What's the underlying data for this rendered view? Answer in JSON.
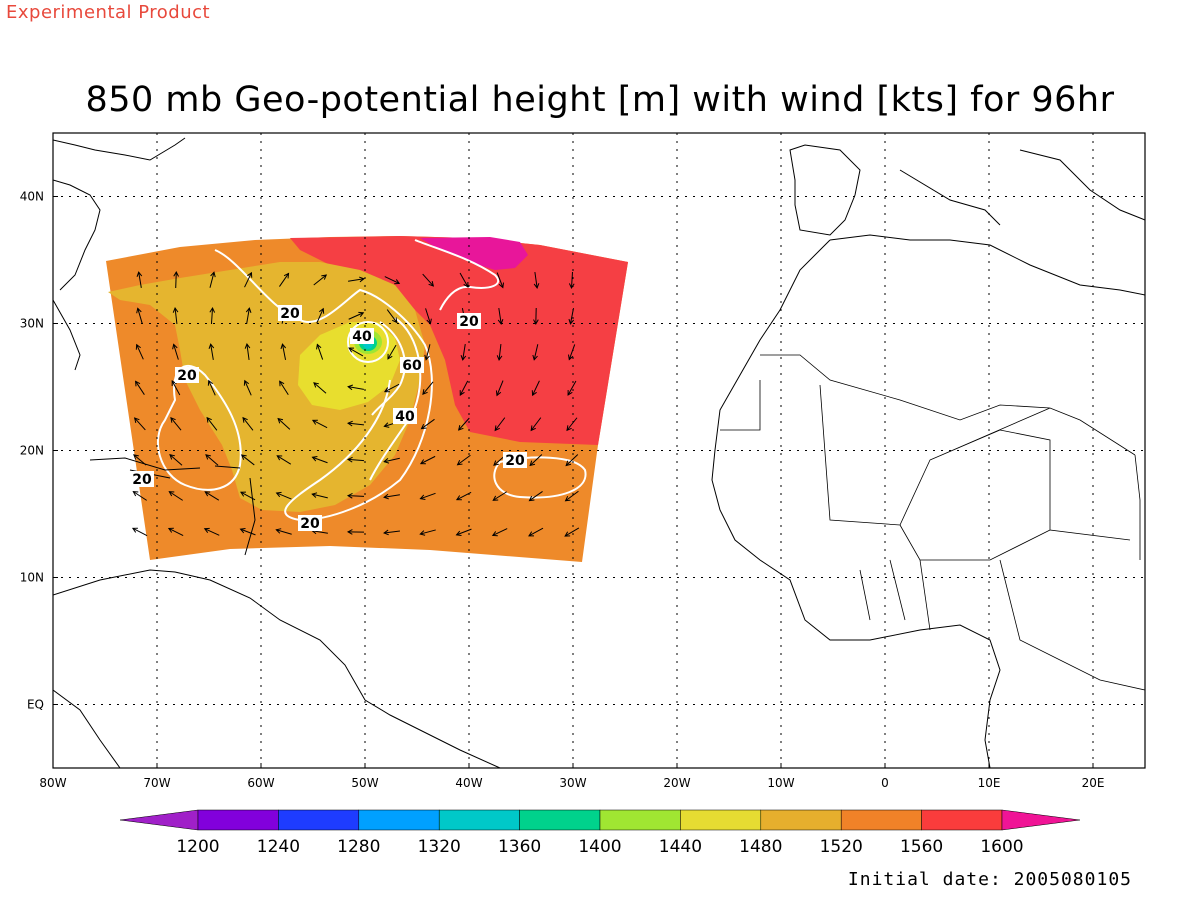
{
  "header": {
    "product_tag": "Experimental Product",
    "title": "850 mb Geo-potential height [m] with wind [kts] for 96hr",
    "initial_date": "Initial date: 2005080105"
  },
  "map": {
    "lon_range": [
      -80,
      25
    ],
    "lat_range": [
      -5,
      45
    ],
    "lon_ticks": [
      "80W",
      "70W",
      "60W",
      "50W",
      "40W",
      "30W",
      "20W",
      "10W",
      "0",
      "10E",
      "20E"
    ],
    "lat_ticks": [
      "EQ",
      "10N",
      "20N",
      "30N",
      "40N"
    ],
    "grid": "dotted",
    "height_field_colors": {
      "1200-1240": "#9a00c8",
      "1480-1520": "#e8de2e",
      "1520-1560": "#e5b52f",
      "1560-1600": "#ee8a2a",
      "1600+": "#f53f44",
      ">1600 peak": "#e8169a"
    },
    "wind_speed_contours": [
      "20",
      "20",
      "20",
      "20",
      "20",
      "20",
      "40",
      "40",
      "60"
    ],
    "storm_center": {
      "lon": -50,
      "lat": 29
    }
  },
  "colorbar": {
    "levels": [
      "1200",
      "1240",
      "1280",
      "1320",
      "1360",
      "1400",
      "1440",
      "1480",
      "1520",
      "1560",
      "1600"
    ],
    "colors": [
      "#a020c8",
      "#8200dc",
      "#1e3cff",
      "#00a0ff",
      "#00c8c8",
      "#00d28c",
      "#a0e632",
      "#e6dc32",
      "#e6af2d",
      "#f08228",
      "#fa3c3c",
      "#f01496"
    ]
  }
}
